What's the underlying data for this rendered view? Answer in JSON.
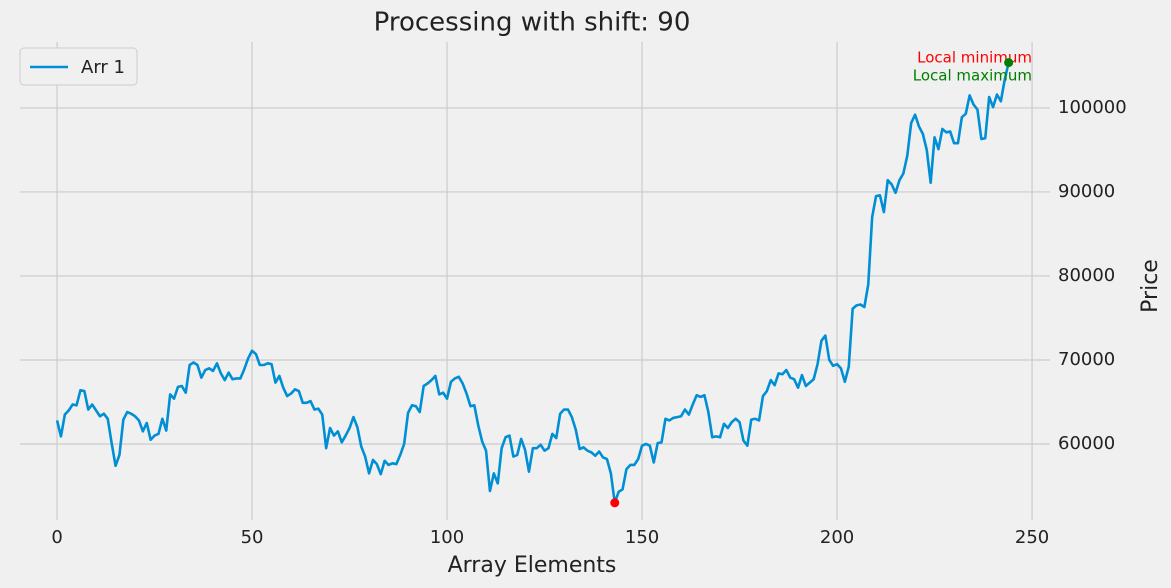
{
  "chart_data": {
    "type": "line",
    "title": "Processing with shift: 90",
    "x_label": "Array Elements",
    "y_label": "Price",
    "x": [
      0,
      1,
      2,
      3,
      4,
      5,
      6,
      7,
      8,
      9,
      10,
      11,
      12,
      13,
      14,
      15,
      16,
      17,
      18,
      19,
      20,
      21,
      22,
      23,
      24,
      25,
      26,
      27,
      28,
      29,
      30,
      31,
      32,
      33,
      34,
      35,
      36,
      37,
      38,
      39,
      40,
      41,
      42,
      43,
      44,
      45,
      46,
      47,
      48,
      49,
      50,
      51,
      52,
      53,
      54,
      55,
      56,
      57,
      58,
      59,
      60,
      61,
      62,
      63,
      64,
      65,
      66,
      67,
      68,
      69,
      70,
      71,
      72,
      73,
      74,
      75,
      76,
      77,
      78,
      79,
      80,
      81,
      82,
      83,
      84,
      85,
      86,
      87,
      88,
      89,
      90,
      91,
      92,
      93,
      94,
      95,
      96,
      97,
      98,
      99,
      100,
      101,
      102,
      103,
      104,
      105,
      106,
      107,
      108,
      109,
      110,
      111,
      112,
      113,
      114,
      115,
      116,
      117,
      118,
      119,
      120,
      121,
      122,
      123,
      124,
      125,
      126,
      127,
      128,
      129,
      130,
      131,
      132,
      133,
      134,
      135,
      136,
      137,
      138,
      139,
      140,
      141,
      142,
      143,
      144,
      145,
      146,
      147,
      148,
      149,
      150,
      151,
      152,
      153,
      154,
      155,
      156,
      157,
      158,
      159,
      160,
      161,
      162,
      163,
      164,
      165,
      166,
      167,
      168,
      169,
      170,
      171,
      172,
      173,
      174,
      175,
      176,
      177,
      178,
      179,
      180,
      181,
      182,
      183,
      184,
      185,
      186,
      187,
      188,
      189,
      190,
      191,
      192,
      193,
      194,
      195,
      196,
      197,
      198,
      199,
      200,
      201,
      202,
      203,
      204,
      205,
      206,
      207,
      208,
      209,
      210,
      211,
      212,
      213,
      214,
      215,
      216,
      217,
      218,
      219,
      220,
      221,
      222,
      223,
      224,
      225,
      226,
      227,
      228,
      229,
      230,
      231,
      232,
      233,
      234,
      235,
      236,
      237,
      238,
      239,
      240,
      241,
      242,
      243,
      244
    ],
    "series": [
      {
        "name": "Arr 1",
        "color": "#008fd5",
        "values": [
          62800,
          60900,
          63500,
          64000,
          64700,
          64600,
          66400,
          66300,
          64100,
          64700,
          64000,
          63300,
          63600,
          63000,
          60100,
          57400,
          58700,
          62900,
          63800,
          63600,
          63300,
          62800,
          61500,
          62500,
          60500,
          61000,
          61200,
          63000,
          61600,
          65900,
          65400,
          66800,
          66900,
          66100,
          69400,
          69700,
          69400,
          67900,
          68800,
          69000,
          68700,
          69600,
          68400,
          67600,
          68500,
          67700,
          67800,
          67800,
          68900,
          70200,
          71100,
          70700,
          69400,
          69400,
          69600,
          69500,
          67300,
          68100,
          66700,
          65700,
          66000,
          66500,
          66300,
          64900,
          64900,
          65100,
          64100,
          64200,
          63500,
          59500,
          61900,
          61000,
          61500,
          60200,
          61000,
          61900,
          63200,
          62000,
          59700,
          58500,
          56500,
          58100,
          57600,
          56400,
          58000,
          57500,
          57700,
          57600,
          58700,
          60000,
          63700,
          64600,
          64500,
          63800,
          66900,
          67200,
          67600,
          68100,
          65900,
          66100,
          65400,
          67400,
          67800,
          68000,
          67200,
          66000,
          64500,
          64600,
          62200,
          60300,
          59200,
          54400,
          56500,
          55300,
          59500,
          60800,
          61000,
          58500,
          58700,
          60600,
          59300,
          56700,
          59500,
          59500,
          59900,
          59200,
          59500,
          61200,
          60700,
          63600,
          64100,
          64100,
          63200,
          61700,
          59400,
          59600,
          59200,
          59000,
          58600,
          59100,
          58400,
          58200,
          56500,
          53000,
          54300,
          54600,
          57000,
          57500,
          57500,
          58200,
          59800,
          60000,
          59800,
          57800,
          60100,
          60200,
          63000,
          62800,
          63100,
          63200,
          63300,
          64100,
          63500,
          64700,
          65800,
          65600,
          65800,
          63800,
          60800,
          60900,
          60800,
          62400,
          61900,
          62600,
          63000,
          62600,
          60400,
          59800,
          62900,
          63000,
          62800,
          65700,
          66300,
          67600,
          67000,
          68400,
          68300,
          68800,
          67900,
          67700,
          66700,
          68200,
          66900,
          67300,
          67700,
          69500,
          72300,
          72900,
          70000,
          69300,
          69500,
          69000,
          67400,
          69200,
          76100,
          76500,
          76600,
          76300,
          79000,
          87000,
          89500,
          89600,
          87600,
          91400,
          90900,
          89900,
          91400,
          92200,
          94300,
          98200,
          99200,
          97800,
          96900,
          95000,
          91100,
          96500,
          95100,
          97500,
          97100,
          97200,
          95800,
          95800,
          98900,
          99300,
          101500,
          100400,
          99800,
          96300,
          96400,
          101300,
          100100,
          101600,
          100800,
          103400,
          105400
        ]
      }
    ],
    "points": [
      {
        "text": "Local minimum",
        "color": "#ff0000",
        "x": 143,
        "y": 53000
      },
      {
        "text": "Local maximum",
        "color": "#008000",
        "x": 244,
        "y": 105400
      }
    ],
    "xlim": [
      -9.5,
      254.6
    ],
    "ylim": [
      50950,
      107850
    ],
    "xticks": [
      0,
      50,
      100,
      150,
      200,
      250
    ],
    "yticks": [
      60000,
      70000,
      80000,
      90000,
      100000
    ],
    "grid": true,
    "legend": "upper left"
  }
}
